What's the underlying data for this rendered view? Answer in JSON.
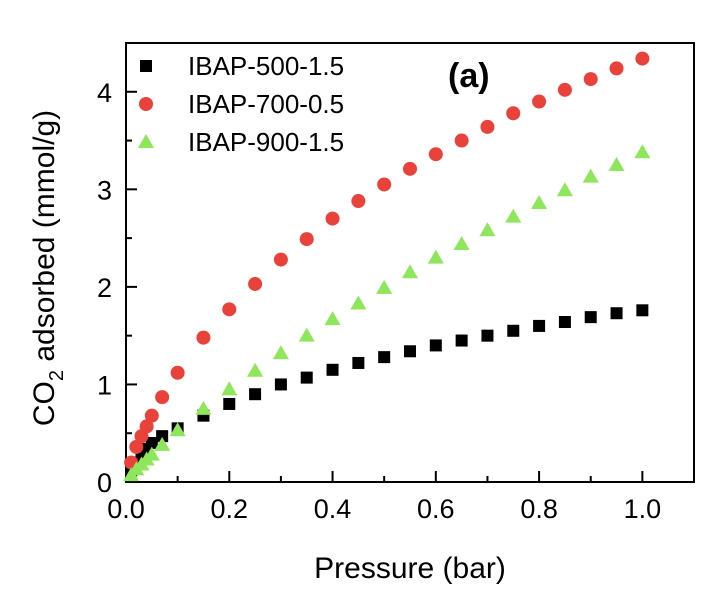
{
  "chart_data": {
    "type": "scatter",
    "panel_label": "(a)",
    "xlabel": "Pressure (bar)",
    "ylabel_main": "CO",
    "ylabel_sub": "2",
    "ylabel_rest": " adsorbed (mmol/g)",
    "xlim": [
      0.0,
      1.1
    ],
    "ylim": [
      0,
      4.5
    ],
    "xticks": [
      0.0,
      0.2,
      0.4,
      0.6,
      0.8,
      1.0
    ],
    "xtick_labels": [
      "0.0",
      "0.2",
      "0.4",
      "0.6",
      "0.8",
      "1.0"
    ],
    "yticks": [
      0,
      1,
      2,
      3,
      4
    ],
    "ytick_labels": [
      "0",
      "1",
      "2",
      "3",
      "4"
    ],
    "grid": false,
    "legend_position": "top-left",
    "series": [
      {
        "name": "IBAP-500-1.5",
        "marker": "square",
        "color": "#000000",
        "x": [
          0.01,
          0.02,
          0.03,
          0.04,
          0.05,
          0.07,
          0.1,
          0.15,
          0.2,
          0.25,
          0.3,
          0.35,
          0.4,
          0.45,
          0.5,
          0.55,
          0.6,
          0.65,
          0.7,
          0.75,
          0.8,
          0.85,
          0.9,
          0.95,
          1.0
        ],
        "y": [
          0.12,
          0.2,
          0.28,
          0.34,
          0.4,
          0.47,
          0.55,
          0.68,
          0.8,
          0.9,
          1.0,
          1.07,
          1.15,
          1.22,
          1.28,
          1.34,
          1.4,
          1.45,
          1.5,
          1.55,
          1.6,
          1.64,
          1.69,
          1.73,
          1.76
        ]
      },
      {
        "name": "IBAP-700-0.5",
        "marker": "circle",
        "color": "#e8423a",
        "x": [
          0.01,
          0.02,
          0.03,
          0.04,
          0.05,
          0.07,
          0.1,
          0.15,
          0.2,
          0.25,
          0.3,
          0.35,
          0.4,
          0.45,
          0.5,
          0.55,
          0.6,
          0.65,
          0.7,
          0.75,
          0.8,
          0.85,
          0.9,
          0.95,
          1.0
        ],
        "y": [
          0.2,
          0.36,
          0.47,
          0.57,
          0.68,
          0.87,
          1.12,
          1.48,
          1.77,
          2.03,
          2.28,
          2.49,
          2.7,
          2.88,
          3.05,
          3.21,
          3.36,
          3.5,
          3.64,
          3.78,
          3.9,
          4.02,
          4.13,
          4.24,
          4.34
        ]
      },
      {
        "name": "IBAP-900-1.5",
        "marker": "triangle",
        "color": "#8ee65a",
        "x": [
          0.01,
          0.02,
          0.03,
          0.04,
          0.05,
          0.07,
          0.1,
          0.15,
          0.2,
          0.25,
          0.3,
          0.35,
          0.4,
          0.45,
          0.5,
          0.55,
          0.6,
          0.65,
          0.7,
          0.75,
          0.8,
          0.85,
          0.9,
          0.95,
          1.0
        ],
        "y": [
          0.07,
          0.13,
          0.18,
          0.23,
          0.28,
          0.38,
          0.53,
          0.75,
          0.95,
          1.14,
          1.32,
          1.5,
          1.67,
          1.83,
          1.99,
          2.15,
          2.3,
          2.44,
          2.58,
          2.72,
          2.86,
          2.99,
          3.13,
          3.25,
          3.38
        ]
      }
    ]
  }
}
